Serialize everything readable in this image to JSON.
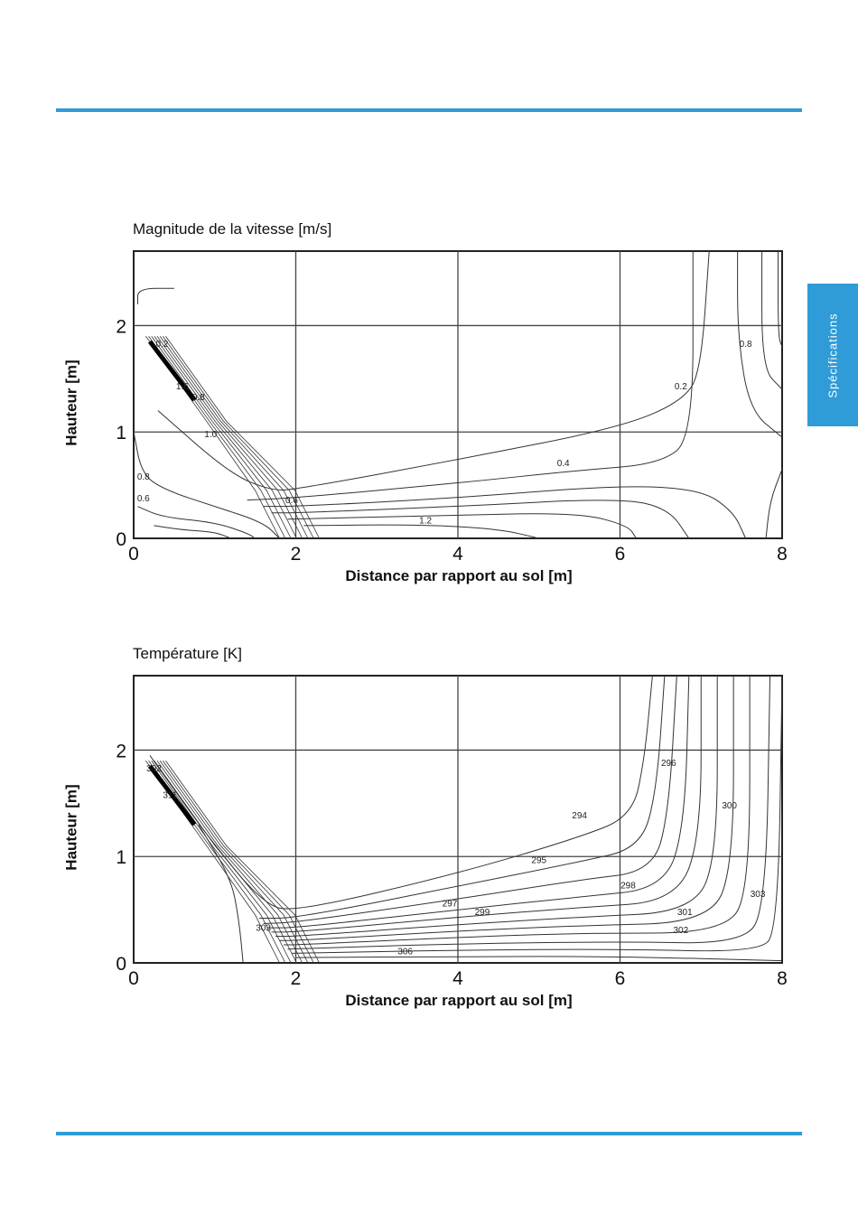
{
  "page": {
    "side_tab": "Spécifications",
    "accent": "#2f9bd7"
  },
  "chart_data": [
    {
      "type": "contour",
      "title": "Magnitude de la vitesse [m/s]",
      "xlabel": "Distance par rapport au sol [m]",
      "ylabel": "Hauteur [m]",
      "xlim": [
        0,
        8
      ],
      "ylim": [
        0,
        2.7
      ],
      "xticks": [
        "0",
        "2",
        "4",
        "6",
        "8"
      ],
      "yticks": [
        "0",
        "1",
        "2"
      ],
      "grid": true,
      "contour_labels": [
        {
          "text": "0.2",
          "x": 6.75,
          "y": 1.4
        },
        {
          "text": "0.4",
          "x": 5.3,
          "y": 0.68
        },
        {
          "text": "0.6",
          "x": 1.95,
          "y": 0.33
        },
        {
          "text": "0.8",
          "x": 7.55,
          "y": 1.8
        },
        {
          "text": "1.2",
          "x": 3.6,
          "y": 0.14
        },
        {
          "text": "0.6",
          "x": 0.12,
          "y": 0.35
        },
        {
          "text": "0.8",
          "x": 0.12,
          "y": 0.55
        },
        {
          "text": "1.6",
          "x": 0.6,
          "y": 1.4
        },
        {
          "text": "0.8",
          "x": 0.8,
          "y": 1.3
        },
        {
          "text": "1.0",
          "x": 0.95,
          "y": 0.95
        },
        {
          "text": "0.2",
          "x": 0.35,
          "y": 1.8
        }
      ],
      "curves": [
        {
          "level": "0.2",
          "points": [
            [
              0.3,
              1.2
            ],
            [
              1.2,
              0.6
            ],
            [
              1.7,
              0.45
            ],
            [
              2.0,
              0.46
            ],
            [
              4.0,
              0.74
            ],
            [
              6.0,
              1.04
            ],
            [
              6.8,
              1.3
            ],
            [
              7.0,
              1.6
            ],
            [
              7.1,
              2.7
            ]
          ]
        },
        {
          "level": "0.4",
          "points": [
            [
              1.4,
              0.36
            ],
            [
              2.0,
              0.38
            ],
            [
              4.0,
              0.52
            ],
            [
              5.5,
              0.64
            ],
            [
              6.5,
              0.7
            ],
            [
              6.9,
              0.95
            ],
            [
              6.9,
              2.7
            ]
          ]
        },
        {
          "level": "0.4",
          "points": [
            [
              1.6,
              0.3
            ],
            [
              2.0,
              0.3
            ],
            [
              4.0,
              0.38
            ],
            [
              6.0,
              0.5
            ],
            [
              7.0,
              0.46
            ],
            [
              7.4,
              0.25
            ],
            [
              7.55,
              0.0
            ]
          ]
        },
        {
          "level": "0.6",
          "points": [
            [
              1.7,
              0.24
            ],
            [
              2.0,
              0.24
            ],
            [
              4.0,
              0.3
            ],
            [
              6.0,
              0.38
            ],
            [
              6.6,
              0.28
            ],
            [
              6.85,
              0.0
            ]
          ]
        },
        {
          "level": "0.8",
          "points": [
            [
              1.9,
              0.18
            ],
            [
              4.0,
              0.22
            ],
            [
              5.5,
              0.24
            ],
            [
              6.1,
              0.12
            ],
            [
              6.2,
              0.0
            ]
          ]
        },
        {
          "level": "1.2",
          "points": [
            [
              2.1,
              0.12
            ],
            [
              3.5,
              0.13
            ],
            [
              4.5,
              0.09
            ],
            [
              5.0,
              0.0
            ]
          ]
        },
        {
          "level": "0.6",
          "points": [
            [
              7.45,
              2.7
            ],
            [
              7.45,
              1.9
            ],
            [
              7.6,
              1.2
            ],
            [
              8.0,
              0.95
            ]
          ]
        },
        {
          "level": "0.8",
          "points": [
            [
              7.75,
              2.7
            ],
            [
              7.75,
              1.6
            ],
            [
              8.0,
              1.4
            ]
          ]
        },
        {
          "level": "1.0",
          "points": [
            [
              7.95,
              2.7
            ],
            [
              7.95,
              1.9
            ],
            [
              8.0,
              1.8
            ]
          ]
        },
        {
          "level": "0.4",
          "points": [
            [
              8.0,
              0.65
            ],
            [
              7.85,
              0.35
            ],
            [
              7.8,
              0.0
            ]
          ]
        },
        {
          "level": "0.4",
          "points": [
            [
              0.05,
              2.2
            ],
            [
              0.05,
              2.35
            ],
            [
              0.5,
              2.35
            ]
          ]
        },
        {
          "level": "0.2",
          "points": [
            [
              0.0,
              1.0
            ],
            [
              0.1,
              0.6
            ],
            [
              0.4,
              0.45
            ],
            [
              1.0,
              0.3
            ],
            [
              1.6,
              0.15
            ],
            [
              1.8,
              0.0
            ]
          ]
        },
        {
          "level": "0.4",
          "points": [
            [
              0.05,
              0.3
            ],
            [
              0.35,
              0.2
            ],
            [
              1.0,
              0.15
            ],
            [
              1.4,
              0.05
            ],
            [
              1.5,
              0.0
            ]
          ]
        },
        {
          "level": "0.8",
          "points": [
            [
              0.25,
              0.12
            ],
            [
              0.6,
              0.08
            ],
            [
              1.0,
              0.06
            ],
            [
              1.2,
              0.0
            ]
          ]
        }
      ]
    },
    {
      "type": "contour",
      "title": "Température [K]",
      "xlabel": "Distance par rapport au sol [m]",
      "ylabel": "Hauteur [m]",
      "xlim": [
        0,
        8
      ],
      "ylim": [
        0,
        2.7
      ],
      "xticks": [
        "0",
        "2",
        "4",
        "6",
        "8"
      ],
      "yticks": [
        "0",
        "1",
        "2"
      ],
      "grid": true,
      "contour_labels": [
        {
          "text": "294",
          "x": 5.5,
          "y": 1.36
        },
        {
          "text": "295",
          "x": 5.0,
          "y": 0.94
        },
        {
          "text": "296",
          "x": 6.6,
          "y": 1.85
        },
        {
          "text": "297",
          "x": 3.9,
          "y": 0.53
        },
        {
          "text": "298",
          "x": 6.1,
          "y": 0.7
        },
        {
          "text": "299",
          "x": 4.3,
          "y": 0.45
        },
        {
          "text": "300",
          "x": 7.35,
          "y": 1.45
        },
        {
          "text": "301",
          "x": 6.8,
          "y": 0.45
        },
        {
          "text": "302",
          "x": 6.75,
          "y": 0.28
        },
        {
          "text": "303",
          "x": 7.7,
          "y": 0.62
        },
        {
          "text": "306",
          "x": 3.35,
          "y": 0.08
        },
        {
          "text": "302",
          "x": 0.25,
          "y": 1.8
        },
        {
          "text": "311",
          "x": 0.45,
          "y": 1.55
        },
        {
          "text": "303",
          "x": 1.6,
          "y": 0.3
        }
      ],
      "curves": [
        {
          "level": "294",
          "points": [
            [
              0.2,
              1.95
            ],
            [
              0.9,
              1.2
            ],
            [
              1.6,
              0.55
            ],
            [
              2.0,
              0.48
            ],
            [
              4.0,
              0.84
            ],
            [
              5.5,
              1.18
            ],
            [
              6.15,
              1.38
            ],
            [
              6.3,
              1.9
            ],
            [
              6.4,
              2.7
            ]
          ]
        },
        {
          "level": "295",
          "points": [
            [
              1.55,
              0.42
            ],
            [
              2.0,
              0.42
            ],
            [
              4.0,
              0.72
            ],
            [
              5.5,
              0.95
            ],
            [
              6.25,
              1.08
            ],
            [
              6.45,
              1.6
            ],
            [
              6.55,
              2.7
            ]
          ]
        },
        {
          "level": "296",
          "points": [
            [
              1.6,
              0.37
            ],
            [
              2.0,
              0.38
            ],
            [
              4.0,
              0.6
            ],
            [
              5.5,
              0.78
            ],
            [
              6.4,
              0.86
            ],
            [
              6.6,
              1.4
            ],
            [
              6.7,
              2.7
            ]
          ]
        },
        {
          "level": "297",
          "points": [
            [
              1.65,
              0.33
            ],
            [
              2.0,
              0.33
            ],
            [
              4.0,
              0.5
            ],
            [
              5.5,
              0.62
            ],
            [
              6.55,
              0.7
            ],
            [
              6.8,
              1.3
            ],
            [
              6.85,
              2.7
            ]
          ]
        },
        {
          "level": "298",
          "points": [
            [
              1.7,
              0.29
            ],
            [
              2.0,
              0.29
            ],
            [
              4.0,
              0.43
            ],
            [
              5.5,
              0.52
            ],
            [
              6.7,
              0.58
            ],
            [
              7.0,
              1.2
            ],
            [
              7.0,
              2.7
            ]
          ]
        },
        {
          "level": "299",
          "points": [
            [
              1.75,
              0.25
            ],
            [
              2.0,
              0.25
            ],
            [
              4.0,
              0.36
            ],
            [
              5.5,
              0.43
            ],
            [
              6.9,
              0.48
            ],
            [
              7.2,
              1.0
            ],
            [
              7.2,
              2.7
            ]
          ]
        },
        {
          "level": "300",
          "points": [
            [
              1.8,
              0.21
            ],
            [
              2.0,
              0.21
            ],
            [
              4.0,
              0.3
            ],
            [
              5.5,
              0.35
            ],
            [
              7.1,
              0.38
            ],
            [
              7.4,
              0.9
            ],
            [
              7.4,
              2.7
            ]
          ]
        },
        {
          "level": "301",
          "points": [
            [
              1.85,
              0.17
            ],
            [
              2.0,
              0.17
            ],
            [
              4.0,
              0.24
            ],
            [
              5.5,
              0.28
            ],
            [
              7.3,
              0.28
            ],
            [
              7.6,
              0.7
            ],
            [
              7.6,
              2.7
            ]
          ]
        },
        {
          "level": "302",
          "points": [
            [
              1.9,
              0.13
            ],
            [
              4.0,
              0.18
            ],
            [
              6.0,
              0.2
            ],
            [
              7.5,
              0.18
            ],
            [
              7.8,
              0.5
            ],
            [
              7.85,
              2.7
            ]
          ]
        },
        {
          "level": "303",
          "points": [
            [
              1.95,
              0.09
            ],
            [
              4.0,
              0.12
            ],
            [
              6.0,
              0.13
            ],
            [
              7.7,
              0.1
            ],
            [
              7.95,
              0.3
            ],
            [
              8.0,
              2.7
            ]
          ]
        },
        {
          "level": "306",
          "points": [
            [
              2.0,
              0.05
            ],
            [
              4.0,
              0.06
            ],
            [
              6.0,
              0.06
            ],
            [
              8.0,
              0.02
            ]
          ]
        },
        {
          "level": "303",
          "points": [
            [
              0.8,
              1.3
            ],
            [
              1.2,
              0.8
            ],
            [
              1.3,
              0.4
            ],
            [
              1.35,
              0.0
            ]
          ]
        }
      ]
    }
  ]
}
